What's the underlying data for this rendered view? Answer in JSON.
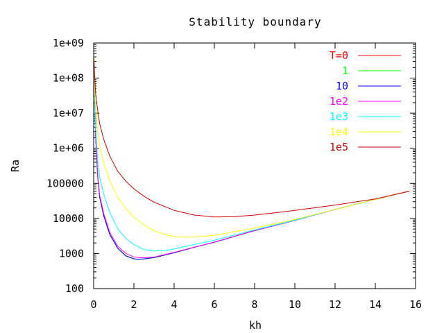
{
  "chart_data": {
    "type": "line",
    "title": "Stability boundary",
    "xlabel": "kh",
    "ylabel": "Ra",
    "xscale": "linear",
    "yscale": "log",
    "xlim": [
      0,
      16
    ],
    "ylim": [
      100,
      1000000000
    ],
    "xticks": [
      "0",
      "2",
      "4",
      "6",
      "8",
      "10",
      "12",
      "14",
      "16"
    ],
    "yticks": [
      "100",
      "1000",
      "10000",
      "100000",
      "1e+06",
      "1e+07",
      "1e+08",
      "1e+09"
    ],
    "grid": false,
    "legend_position": "top-right",
    "series": [
      {
        "name": "T=0",
        "color": "#ff0000",
        "x": [
          0.02,
          0.05,
          0.1,
          0.2,
          0.3,
          0.5,
          0.8,
          1.2,
          1.6,
          2.0,
          2.2,
          2.5,
          3.0,
          4.0,
          5.0,
          6.0,
          8.0,
          10.0,
          12.0,
          14.0,
          15.7
        ],
        "y": [
          400000000,
          30000000,
          2000000,
          160000,
          40000,
          12000,
          3500,
          1400,
          850,
          700,
          680,
          700,
          760,
          1050,
          1500,
          2100,
          4500,
          8800,
          18000,
          35000,
          60000
        ]
      },
      {
        "name": "1",
        "color": "#00ff00",
        "x": [
          0.02,
          0.05,
          0.1,
          0.2,
          0.3,
          0.5,
          0.8,
          1.2,
          1.6,
          2.0,
          2.2,
          2.5,
          3.0,
          4.0,
          5.0,
          6.0,
          8.0,
          10.0,
          12.0,
          14.0,
          15.7
        ],
        "y": [
          400000000,
          30000000,
          2000000,
          160000,
          40000,
          12000,
          3500,
          1400,
          850,
          700,
          680,
          700,
          760,
          1050,
          1500,
          2100,
          4500,
          8800,
          18000,
          35000,
          60000
        ]
      },
      {
        "name": "10",
        "color": "#0000ff",
        "x": [
          0.02,
          0.05,
          0.1,
          0.2,
          0.3,
          0.5,
          0.8,
          1.2,
          1.6,
          2.0,
          2.2,
          2.5,
          3.0,
          4.0,
          5.0,
          6.0,
          8.0,
          10.0,
          12.0,
          14.0,
          15.7
        ],
        "y": [
          400000000,
          30000000,
          2000000,
          160000,
          40000,
          12000,
          3500,
          1400,
          860,
          710,
          690,
          705,
          765,
          1055,
          1505,
          2100,
          4500,
          8800,
          18000,
          35000,
          60000
        ]
      },
      {
        "name": "1e2",
        "color": "#ff00ff",
        "x": [
          0.02,
          0.05,
          0.1,
          0.2,
          0.3,
          0.5,
          0.8,
          1.2,
          1.6,
          2.0,
          2.3,
          2.6,
          3.0,
          4.0,
          5.0,
          6.0,
          8.0,
          10.0,
          12.0,
          14.0,
          15.7
        ],
        "y": [
          400000000,
          30000000,
          2100000,
          180000,
          45000,
          14000,
          4000,
          1600,
          1000,
          800,
          760,
          760,
          790,
          1080,
          1520,
          2120,
          4500,
          8800,
          18000,
          35000,
          60000
        ]
      },
      {
        "name": "1e3",
        "color": "#00ffff",
        "x": [
          0.02,
          0.05,
          0.1,
          0.2,
          0.3,
          0.5,
          0.8,
          1.2,
          1.6,
          2.0,
          2.5,
          3.0,
          3.5,
          4.0,
          5.0,
          6.0,
          8.0,
          10.0,
          12.0,
          14.0,
          15.7
        ],
        "y": [
          400000000,
          35000000,
          3500000,
          450000,
          150000,
          50000,
          15000,
          5000,
          2700,
          1800,
          1300,
          1180,
          1200,
          1350,
          1800,
          2400,
          4700,
          8900,
          18000,
          35000,
          60000
        ]
      },
      {
        "name": "1e4",
        "color": "#ffff00",
        "x": [
          0.02,
          0.05,
          0.1,
          0.2,
          0.3,
          0.5,
          0.8,
          1.2,
          1.6,
          2.0,
          2.5,
          3.0,
          3.5,
          4.0,
          4.6,
          5.0,
          6.0,
          7.0,
          8.0,
          10.0,
          12.0,
          14.0,
          15.7
        ],
        "y": [
          400000000,
          60000000,
          15000000,
          3000000,
          1200000,
          380000,
          120000,
          40000,
          19000,
          11000,
          6500,
          4500,
          3500,
          3050,
          2900,
          2950,
          3300,
          4200,
          5300,
          9300,
          18000,
          35000,
          60000
        ]
      },
      {
        "name": "1e5",
        "color": "#cc0000",
        "x": [
          0.02,
          0.05,
          0.1,
          0.2,
          0.3,
          0.5,
          0.8,
          1.2,
          1.6,
          2.0,
          2.5,
          3.0,
          4.0,
          5.0,
          6.0,
          7.0,
          8.0,
          9.0,
          10.0,
          12.0,
          14.0,
          15.7
        ],
        "y": [
          300000000,
          110000000,
          35000000,
          12000000,
          5000000,
          1800000,
          600000,
          220000,
          115000,
          70000,
          43000,
          29000,
          17000,
          12500,
          11000,
          11200,
          12500,
          14500,
          17000,
          24000,
          36000,
          60000
        ]
      }
    ]
  }
}
